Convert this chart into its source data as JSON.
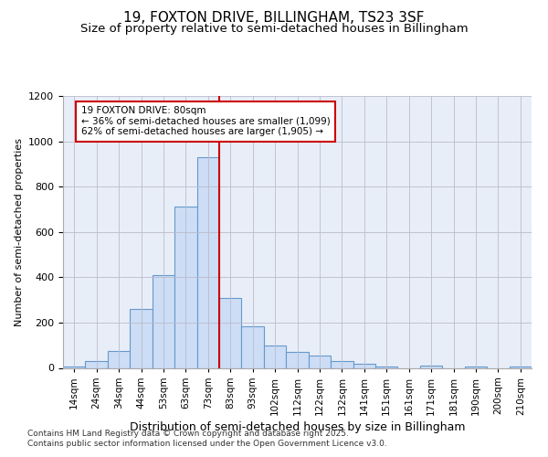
{
  "title": "19, FOXTON DRIVE, BILLINGHAM, TS23 3SF",
  "subtitle": "Size of property relative to semi-detached houses in Billingham",
  "xlabel": "Distribution of semi-detached houses by size in Billingham",
  "ylabel": "Number of semi-detached properties",
  "categories": [
    "14sqm",
    "24sqm",
    "34sqm",
    "44sqm",
    "53sqm",
    "63sqm",
    "73sqm",
    "83sqm",
    "93sqm",
    "102sqm",
    "112sqm",
    "122sqm",
    "132sqm",
    "141sqm",
    "151sqm",
    "161sqm",
    "171sqm",
    "181sqm",
    "190sqm",
    "200sqm",
    "210sqm"
  ],
  "values": [
    8,
    30,
    75,
    260,
    410,
    710,
    930,
    310,
    185,
    100,
    70,
    55,
    30,
    20,
    5,
    0,
    10,
    0,
    5,
    0,
    5
  ],
  "bar_color": "#ccddf5",
  "bar_edge_color": "#6699cc",
  "vline_color": "#cc0000",
  "annotation_text": "19 FOXTON DRIVE: 80sqm\n← 36% of semi-detached houses are smaller (1,099)\n62% of semi-detached houses are larger (1,905) →",
  "annotation_box_color": "#ffffff",
  "annotation_box_edge": "#cc0000",
  "ylim": [
    0,
    1200
  ],
  "yticks": [
    0,
    200,
    400,
    600,
    800,
    1000,
    1200
  ],
  "background_color": "#e8eef8",
  "footer_line1": "Contains HM Land Registry data © Crown copyright and database right 2025.",
  "footer_line2": "Contains public sector information licensed under the Open Government Licence v3.0.",
  "title_fontsize": 11,
  "subtitle_fontsize": 9.5,
  "xlabel_fontsize": 9,
  "ylabel_fontsize": 8,
  "footer_fontsize": 6.5
}
